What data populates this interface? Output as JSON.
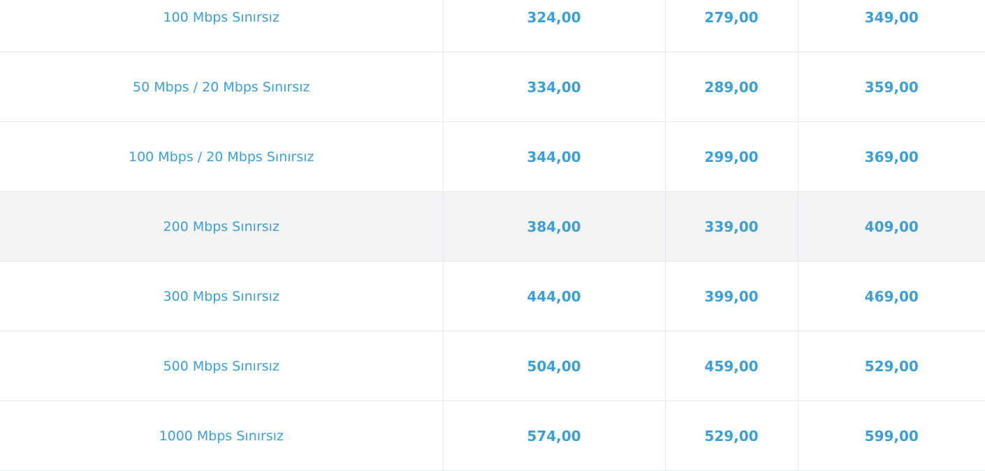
{
  "colors": {
    "text": "#3d9fd8",
    "highlight_row": "#f4f4f5",
    "border": "#e6e9f4"
  },
  "rows": [
    {
      "name": "100 Mbps Sınırsız",
      "p1": "324,00",
      "p2": "279,00",
      "p3": "349,00"
    },
    {
      "name": "50 Mbps / 20 Mbps Sınırsız",
      "p1": "334,00",
      "p2": "289,00",
      "p3": "359,00"
    },
    {
      "name": "100 Mbps / 20 Mbps Sınırsız",
      "p1": "344,00",
      "p2": "299,00",
      "p3": "369,00"
    },
    {
      "name": "200 Mbps Sınırsız",
      "p1": "384,00",
      "p2": "339,00",
      "p3": "409,00",
      "highlighted": true
    },
    {
      "name": "300 Mbps Sınırsız",
      "p1": "444,00",
      "p2": "399,00",
      "p3": "469,00"
    },
    {
      "name": "500 Mbps Sınırsız",
      "p1": "504,00",
      "p2": "459,00",
      "p3": "529,00"
    },
    {
      "name": "1000 Mbps Sınırsız",
      "p1": "574,00",
      "p2": "529,00",
      "p3": "599,00"
    }
  ]
}
